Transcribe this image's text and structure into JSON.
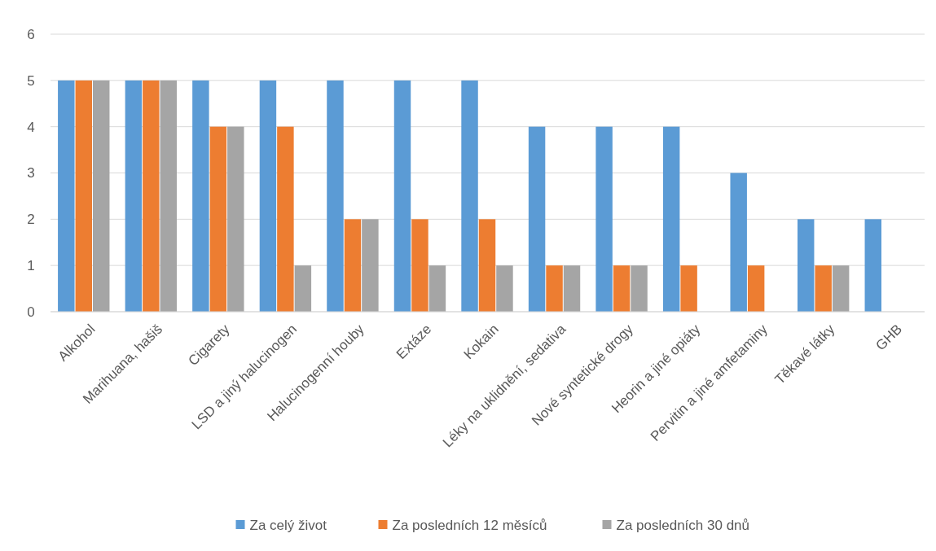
{
  "chart_data": {
    "type": "bar",
    "categories": [
      "Alkohol",
      "Marihuana, hašiš",
      "Cigarety",
      "LSD a jiný halucinogen",
      "Halucinogenní houby",
      "Extáze",
      "Kokain",
      "Léky na uklidnění, sedativa",
      "Nové syntetické drogy",
      "Heorin a jiné opiáty",
      "Pervitin a jiné amfetaminy",
      "Těkavé látky",
      "GHB"
    ],
    "series": [
      {
        "name": "Za celý život",
        "color": "#5b9bd5",
        "values": [
          5,
          5,
          5,
          5,
          5,
          5,
          5,
          4,
          4,
          4,
          3,
          2,
          2
        ]
      },
      {
        "name": "Za posledních 12 měsíců",
        "color": "#ed7d31",
        "values": [
          5,
          5,
          4,
          4,
          2,
          2,
          2,
          1,
          1,
          1,
          1,
          1,
          0
        ]
      },
      {
        "name": "Za posledních 30 dnů",
        "color": "#a5a5a5",
        "values": [
          5,
          5,
          4,
          1,
          2,
          1,
          1,
          1,
          1,
          0,
          0,
          1,
          0
        ]
      }
    ],
    "ylim": [
      0,
      6
    ],
    "yticks": [
      0,
      1,
      2,
      3,
      4,
      5,
      6
    ],
    "grid": "y",
    "legend": "bottom"
  }
}
